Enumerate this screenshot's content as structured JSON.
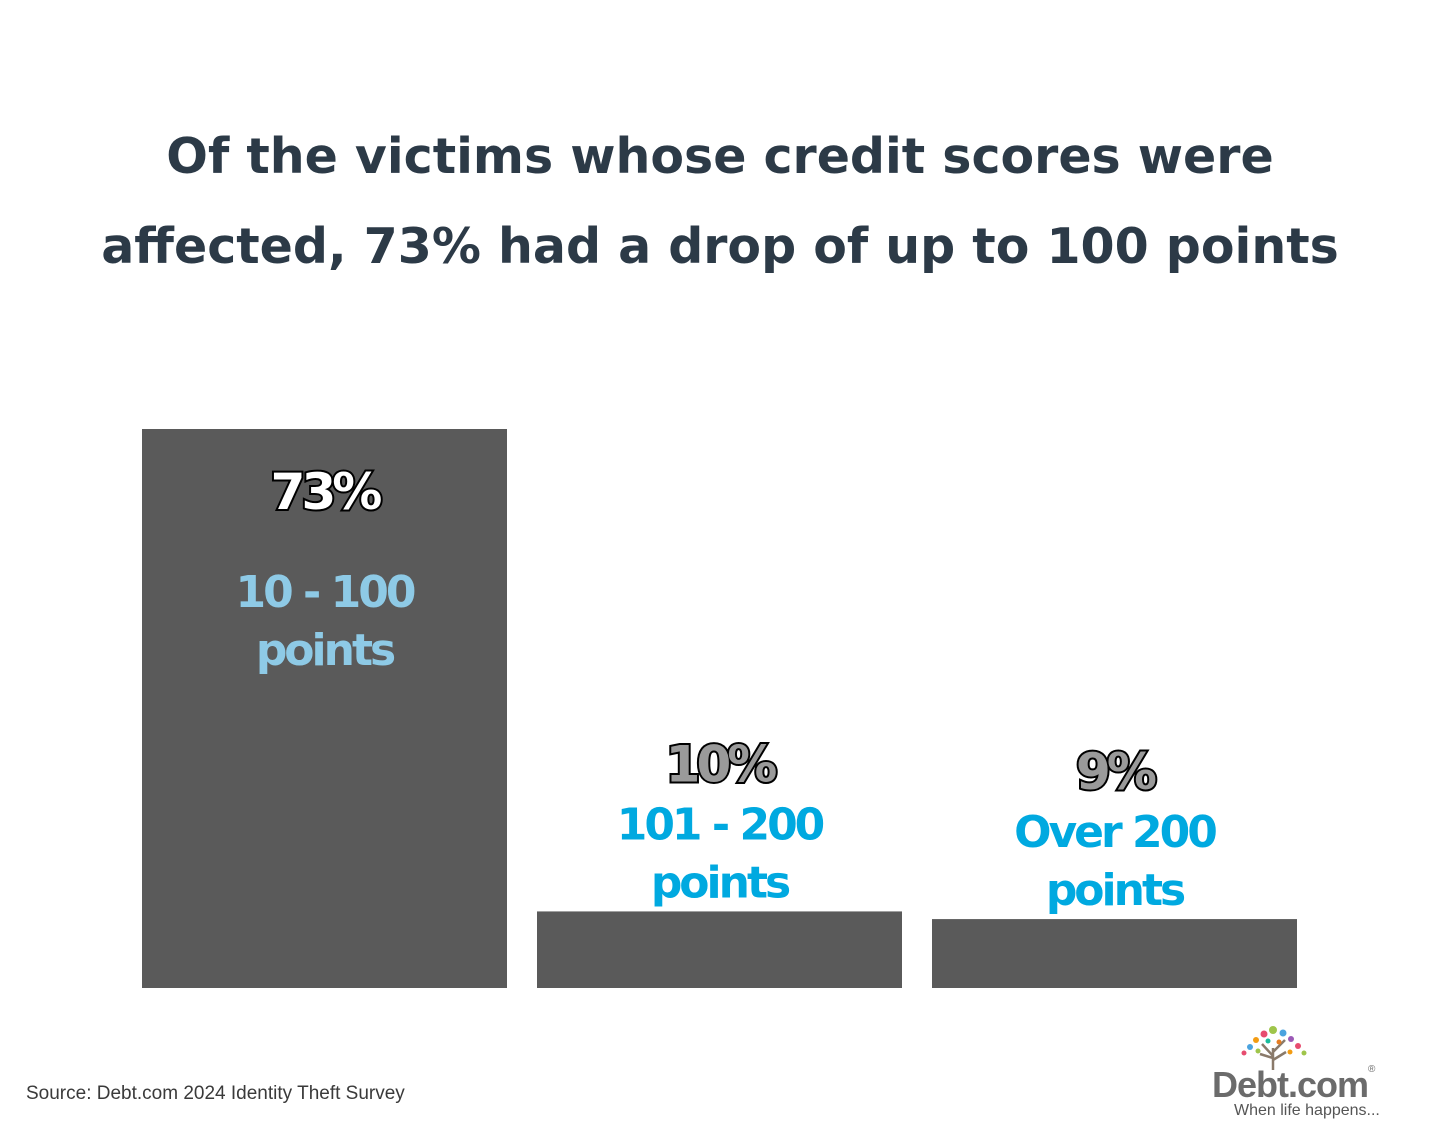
{
  "title": "Of the victims whose credit scores were affected, 73% had a drop of up to 100 points",
  "source": "Source: Debt.com 2024 Identity Theft Survey",
  "brand": {
    "name": "Debt.com",
    "registered_mark": "®",
    "tagline": "When life happens..."
  },
  "colors": {
    "bar": "#5a5a5a",
    "title": "#2c3a47",
    "pct_first_fill": "#ffffff",
    "pct_other_fill": "#9a9a9a",
    "cat_first": "#8ecae6",
    "cat_other": "#00a9e0"
  },
  "chart_data": {
    "type": "bar",
    "categories": [
      "10 - 100 points",
      "101 - 200 points",
      "Over 200 points"
    ],
    "category_lines": [
      [
        "10 - 100",
        "points"
      ],
      [
        "101 - 200",
        "points"
      ],
      [
        "Over 200",
        "points"
      ]
    ],
    "values": [
      73,
      10,
      9
    ],
    "value_labels": [
      "73%",
      "10%",
      "9%"
    ],
    "unit": "%",
    "ylim": [
      0,
      73
    ],
    "grid": false,
    "legend": "none"
  }
}
